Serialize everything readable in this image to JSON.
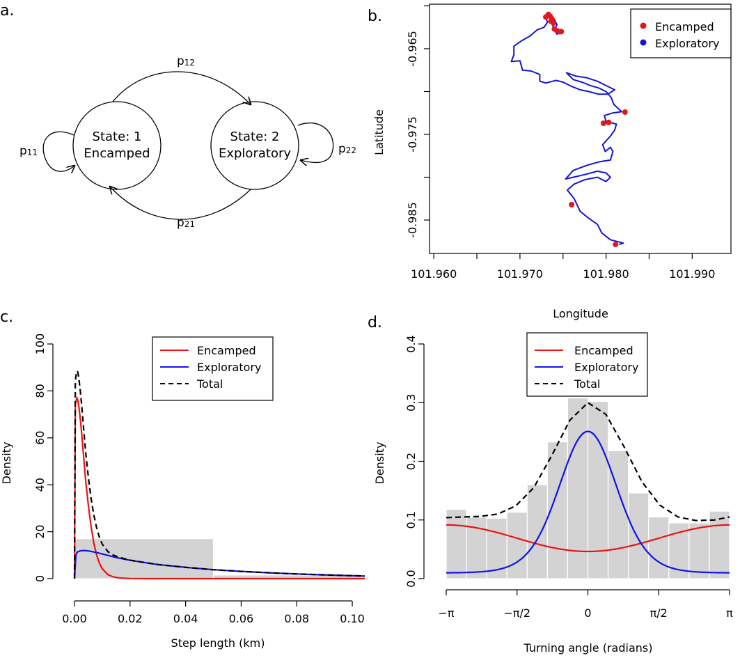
{
  "panels": {
    "a": {
      "letter": "a.",
      "states": [
        {
          "line1": "State: 1",
          "line2": "Encamped"
        },
        {
          "line1": "State: 2",
          "line2": "Exploratory"
        }
      ],
      "transitions": {
        "p11": {
          "base": "p",
          "sub": "11"
        },
        "p12": {
          "base": "p",
          "sub": "12"
        },
        "p21": {
          "base": "p",
          "sub": "21"
        },
        "p22": {
          "base": "p",
          "sub": "22"
        }
      }
    },
    "b": {
      "letter": "b."
    },
    "c": {
      "letter": "c."
    },
    "d": {
      "letter": "d."
    }
  },
  "chart_data": [
    {
      "id": "b",
      "type": "line",
      "xlabel": "Longitude",
      "ylabel": "Latitude",
      "xlim": [
        101.9595,
        101.9945
      ],
      "ylim": [
        -0.9889,
        -0.9598
      ],
      "xticks": [
        101.96,
        101.97,
        101.98,
        101.99
      ],
      "xtick_labels": [
        "101.960",
        "101.970",
        "101.980",
        "101.990"
      ],
      "yticks": [
        -0.965,
        -0.975,
        -0.985
      ],
      "ytick_labels": [
        "-0.965",
        "-0.975",
        "-0.985"
      ],
      "legend": {
        "position": "top-right",
        "entries": [
          {
            "label": "Encamped",
            "color": "#e6161f"
          },
          {
            "label": "Exploratory",
            "color": "#1414d9"
          }
        ]
      },
      "track": [
        [
          101.9815,
          -0.98785
        ],
        [
          101.982,
          -0.9877
        ],
        [
          101.9805,
          -0.9873
        ],
        [
          101.9795,
          -0.9865
        ],
        [
          101.979,
          -0.9855
        ],
        [
          101.978,
          -0.9848
        ],
        [
          101.977,
          -0.984
        ],
        [
          101.9763,
          -0.9825
        ],
        [
          101.9755,
          -0.9815
        ],
        [
          101.9763,
          -0.9808
        ],
        [
          101.9775,
          -0.9803
        ],
        [
          101.979,
          -0.98
        ],
        [
          101.98,
          -0.9805
        ],
        [
          101.9805,
          -0.98
        ],
        [
          101.98,
          -0.9795
        ],
        [
          101.979,
          -0.9793
        ],
        [
          101.9775,
          -0.9797
        ],
        [
          101.9762,
          -0.98
        ],
        [
          101.9753,
          -0.9802
        ],
        [
          101.9762,
          -0.9792
        ],
        [
          101.9778,
          -0.9786
        ],
        [
          101.9792,
          -0.9782
        ],
        [
          101.9805,
          -0.978
        ],
        [
          101.9808,
          -0.977
        ],
        [
          101.9805,
          -0.9765
        ],
        [
          101.9799,
          -0.977
        ],
        [
          101.9796,
          -0.9762
        ],
        [
          101.9805,
          -0.9752
        ],
        [
          101.981,
          -0.9745
        ],
        [
          101.9812,
          -0.9738
        ],
        [
          101.98,
          -0.9735
        ],
        [
          101.9798,
          -0.9728
        ],
        [
          101.9808,
          -0.9725
        ],
        [
          101.9818,
          -0.97235
        ],
        [
          101.9809,
          -0.9715
        ],
        [
          101.9806,
          -0.9707
        ],
        [
          101.98,
          -0.97
        ],
        [
          101.9792,
          -0.9696
        ],
        [
          101.9782,
          -0.9693
        ],
        [
          101.9772,
          -0.9689
        ],
        [
          101.9762,
          -0.9686
        ],
        [
          101.9754,
          -0.9678
        ],
        [
          101.9765,
          -0.9682
        ],
        [
          101.9778,
          -0.9684
        ],
        [
          101.979,
          -0.9688
        ],
        [
          101.98,
          -0.9693
        ],
        [
          101.981,
          -0.9698
        ],
        [
          101.9802,
          -0.9703
        ],
        [
          101.9791,
          -0.9703
        ],
        [
          101.978,
          -0.97
        ],
        [
          101.977,
          -0.9698
        ],
        [
          101.976,
          -0.9694
        ],
        [
          101.975,
          -0.9689
        ],
        [
          101.9742,
          -0.9687
        ],
        [
          101.973,
          -0.969
        ],
        [
          101.9723,
          -0.9688
        ],
        [
          101.9723,
          -0.968
        ],
        [
          101.9713,
          -0.9676
        ],
        [
          101.9703,
          -0.9675
        ],
        [
          101.97,
          -0.9664
        ],
        [
          101.969,
          -0.9665
        ],
        [
          101.9693,
          -0.9657
        ],
        [
          101.9693,
          -0.9647
        ],
        [
          101.9703,
          -0.964
        ],
        [
          101.9712,
          -0.9635
        ],
        [
          101.972,
          -0.9628
        ],
        [
          101.9728,
          -0.9625
        ],
        [
          101.9732,
          -0.9619
        ],
        [
          101.973,
          -0.9614
        ],
        [
          101.9736,
          -0.9612
        ],
        [
          101.9736,
          -0.9619
        ],
        [
          101.974,
          -0.9627
        ],
        [
          101.9748,
          -0.963
        ],
        [
          101.9743,
          -0.9633
        ],
        [
          101.974,
          -0.9628
        ],
        [
          101.9743,
          -0.9622
        ],
        [
          101.974,
          -0.9616
        ],
        [
          101.9735,
          -0.9614
        ],
        [
          101.9733,
          -0.961
        ],
        [
          101.973,
          -0.9613
        ]
      ],
      "encamped_points": [
        [
          101.973,
          -0.9613
        ],
        [
          101.9735,
          -0.9612
        ],
        [
          101.9737,
          -0.9615
        ],
        [
          101.9739,
          -0.962
        ],
        [
          101.974,
          -0.9627
        ],
        [
          101.9743,
          -0.9629
        ],
        [
          101.9746,
          -0.963
        ],
        [
          101.9748,
          -0.963
        ],
        [
          101.9733,
          -0.961
        ],
        [
          101.9736,
          -0.9618
        ],
        [
          101.9822,
          -0.9724
        ],
        [
          101.9803,
          -0.9736
        ],
        [
          101.9797,
          -0.9737
        ],
        [
          101.976,
          -0.9832
        ],
        [
          101.9811,
          -0.98785
        ]
      ]
    },
    {
      "id": "c",
      "type": "line",
      "xlabel": "Step length (km)",
      "ylabel": "Density",
      "xlim": [
        0,
        0.1045
      ],
      "ylim": [
        0,
        100
      ],
      "xticks": [
        0,
        0.02,
        0.04,
        0.06,
        0.08,
        0.1
      ],
      "xtick_labels": [
        "0.00",
        "0.02",
        "0.04",
        "0.06",
        "0.08",
        "0.10"
      ],
      "yticks": [
        0,
        20,
        40,
        60,
        80,
        100
      ],
      "ytick_labels": [
        "0",
        "20",
        "40",
        "60",
        "80",
        "100"
      ],
      "histogram": {
        "edges": [
          0,
          0.05,
          0.1045
        ],
        "counts": [
          17,
          1.5
        ]
      },
      "series": [
        {
          "name": "Encamped",
          "color": "#ee1111",
          "dash": false,
          "x": [
            0,
            0.0003,
            0.0006,
            0.0009,
            0.0012,
            0.0016,
            0.002,
            0.0025,
            0.003,
            0.0035,
            0.004,
            0.005,
            0.006,
            0.007,
            0.008,
            0.009,
            0.01,
            0.012,
            0.014,
            0.016,
            0.02,
            0.025,
            0.03,
            0.04,
            0.06,
            0.08,
            0.1045
          ],
          "y": [
            0,
            74,
            76,
            77,
            76,
            73,
            69,
            63,
            56,
            49,
            42,
            31,
            22,
            15,
            10,
            6.5,
            4.2,
            1.7,
            0.7,
            0.3,
            0.05,
            0,
            0,
            0,
            0,
            0,
            0
          ]
        },
        {
          "name": "Exploratory",
          "color": "#1111ee",
          "dash": false,
          "x": [
            0,
            0.0005,
            0.001,
            0.002,
            0.003,
            0.004,
            0.005,
            0.006,
            0.008,
            0.01,
            0.015,
            0.02,
            0.03,
            0.04,
            0.05,
            0.06,
            0.07,
            0.08,
            0.09,
            0.1045
          ],
          "y": [
            0,
            10,
            11.3,
            11.8,
            12,
            11.9,
            11.8,
            11.6,
            11.1,
            10.5,
            9,
            7.8,
            6,
            4.8,
            3.8,
            3.1,
            2.5,
            2,
            1.6,
            1.1
          ]
        },
        {
          "name": "Total",
          "color": "#000000",
          "dash": true,
          "x": [
            0,
            0.0003,
            0.0006,
            0.0009,
            0.0012,
            0.0016,
            0.002,
            0.0025,
            0.003,
            0.0035,
            0.004,
            0.005,
            0.006,
            0.007,
            0.008,
            0.009,
            0.01,
            0.012,
            0.014,
            0.016,
            0.02,
            0.025,
            0.03,
            0.04,
            0.05,
            0.06,
            0.07,
            0.08,
            0.09,
            0.1045
          ],
          "y": [
            0,
            84,
            87,
            88.5,
            88,
            85,
            81,
            75,
            68,
            61,
            54,
            43,
            34,
            27,
            21.5,
            17.5,
            14.7,
            11.5,
            10,
            9.1,
            7.9,
            6.9,
            6,
            4.8,
            3.8,
            3.1,
            2.5,
            2,
            1.6,
            1.1
          ]
        }
      ],
      "legend": {
        "position": "top-right"
      }
    },
    {
      "id": "d",
      "type": "line",
      "xlabel": "Turning angle (radians)",
      "ylabel": "Density",
      "xlim": [
        -3.1416,
        3.1416
      ],
      "ylim": [
        0,
        0.4
      ],
      "xticks": [
        -3.1416,
        -1.5708,
        0,
        1.5708,
        3.1416
      ],
      "xtick_labels": [
        "−π",
        "−π/2",
        "0",
        "π/2",
        "π"
      ],
      "yticks": [
        0,
        0.1,
        0.2,
        0.3,
        0.4
      ],
      "ytick_labels": [
        "0.0",
        "0.1",
        "0.2",
        "0.3",
        "0.4"
      ],
      "histogram": {
        "edges": [
          -3.1416,
          -2.6928,
          -2.244,
          -1.7952,
          -1.3464,
          -0.8976,
          -0.4488,
          0,
          0.4488,
          0.8976,
          1.3464,
          1.7952,
          2.244,
          2.6928,
          3.1416
        ],
        "counts": [
          0.118,
          0.105,
          0.103,
          0.113,
          0.16,
          0.233,
          0.308,
          0.302,
          0.218,
          0.146,
          0.105,
          0.095,
          0.095,
          0.115
        ]
      },
      "series": [
        {
          "name": "Encamped",
          "color": "#ee1111",
          "dash": false,
          "mu": 3.1416,
          "mean": 0.0689,
          "amp": 0.0226
        },
        {
          "name": "Exploratory",
          "color": "#1111ee",
          "dash": false,
          "mu": 0,
          "base": 0.01,
          "peak": 0.251,
          "kappa": 2.5
        },
        {
          "name": "Total",
          "color": "#000000",
          "dash": true,
          "x": [
            -3.1416,
            -2.8,
            -2.4,
            -2.0,
            -1.6,
            -1.2,
            -0.8,
            -0.4,
            0,
            0.4,
            0.8,
            1.2,
            1.6,
            2.0,
            2.4,
            2.8,
            3.1416
          ],
          "y": [
            0.104,
            0.105,
            0.106,
            0.11,
            0.124,
            0.155,
            0.21,
            0.27,
            0.3,
            0.28,
            0.225,
            0.165,
            0.125,
            0.105,
            0.099,
            0.1,
            0.105
          ]
        }
      ],
      "legend": {
        "position": "top-center"
      }
    }
  ]
}
